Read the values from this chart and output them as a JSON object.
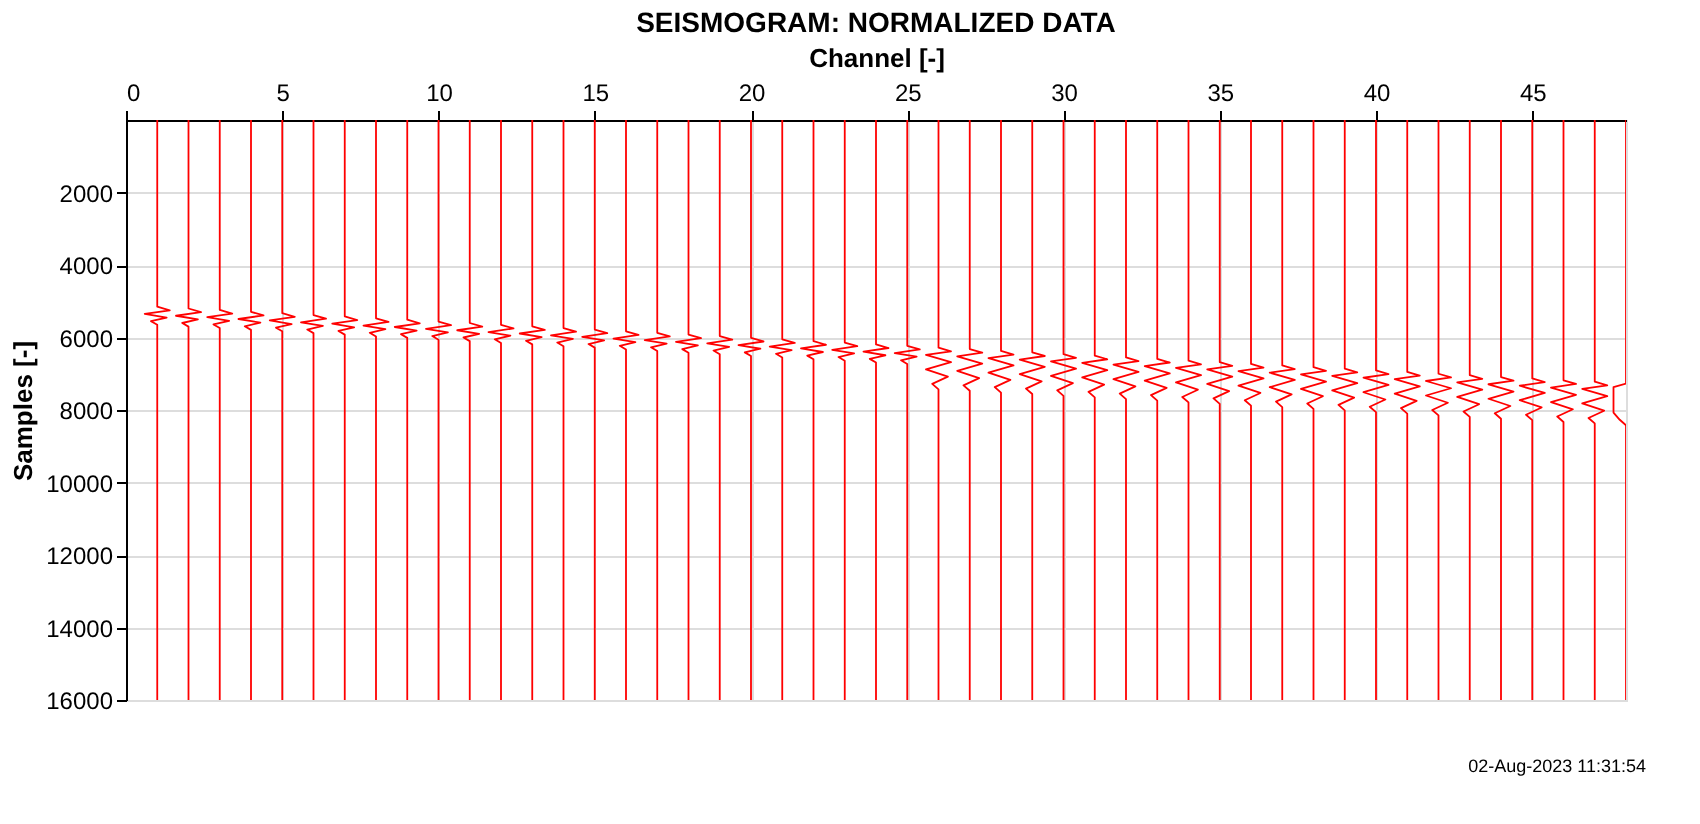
{
  "chart_data": {
    "type": "line",
    "title": "SEISMOGRAM: NORMALIZED DATA",
    "xlabel": "Channel [-]",
    "ylabel": "Samples [-]",
    "xlim": [
      0,
      48
    ],
    "xticks": [
      0,
      5,
      10,
      15,
      20,
      25,
      30,
      35,
      40,
      45
    ],
    "ylim": [
      16000,
      0
    ],
    "yticks": [
      2000,
      4000,
      6000,
      8000,
      10000,
      12000,
      14000,
      16000
    ],
    "grid": true,
    "legend": false,
    "line_style": "solid",
    "annotations": [
      "02-Aug-2023 11:31:54"
    ],
    "series": [
      {
        "x": [
          1,
          1,
          1.4,
          0.6,
          1.3,
          0.8,
          1,
          1
        ],
        "values": [
          0,
          5150,
          5250,
          5350,
          5450,
          5550,
          5650,
          16000
        ],
        "color": "#ff0000"
      },
      {
        "x": [
          2,
          2,
          2.4,
          1.6,
          2.3,
          1.8,
          2,
          2
        ],
        "values": [
          0,
          5200,
          5300,
          5400,
          5500,
          5600,
          5700,
          16000
        ],
        "color": "#ff0000"
      },
      {
        "x": [
          3,
          3,
          3.4,
          2.6,
          3.3,
          2.8,
          3,
          3
        ],
        "values": [
          0,
          5240,
          5340,
          5440,
          5540,
          5640,
          5740,
          16000
        ],
        "color": "#ff0000"
      },
      {
        "x": [
          4,
          4,
          4.4,
          3.6,
          4.3,
          3.8,
          4,
          4
        ],
        "values": [
          0,
          5290,
          5390,
          5490,
          5590,
          5690,
          5790,
          16000
        ],
        "color": "#ff0000"
      },
      {
        "x": [
          5,
          5,
          5.4,
          4.6,
          5.3,
          4.8,
          5,
          5
        ],
        "values": [
          0,
          5330,
          5430,
          5530,
          5630,
          5730,
          5830,
          16000
        ],
        "color": "#ff0000"
      },
      {
        "x": [
          6,
          6,
          6.4,
          5.6,
          6.3,
          5.8,
          6,
          6
        ],
        "values": [
          0,
          5380,
          5480,
          5580,
          5680,
          5780,
          5880,
          16000
        ],
        "color": "#ff0000"
      },
      {
        "x": [
          7,
          7,
          7.4,
          6.6,
          7.3,
          6.8,
          7,
          7
        ],
        "values": [
          0,
          5420,
          5520,
          5620,
          5720,
          5820,
          5920,
          16000
        ],
        "color": "#ff0000"
      },
      {
        "x": [
          8,
          8,
          8.4,
          7.6,
          8.3,
          7.8,
          8,
          8
        ],
        "values": [
          0,
          5470,
          5570,
          5670,
          5770,
          5870,
          5970,
          16000
        ],
        "color": "#ff0000"
      },
      {
        "x": [
          9,
          9,
          9.4,
          8.6,
          9.3,
          8.8,
          9,
          9
        ],
        "values": [
          0,
          5510,
          5610,
          5710,
          5810,
          5910,
          6010,
          16000
        ],
        "color": "#ff0000"
      },
      {
        "x": [
          10,
          10,
          10.4,
          9.6,
          10.3,
          9.8,
          10,
          10
        ],
        "values": [
          0,
          5560,
          5660,
          5760,
          5860,
          5960,
          6060,
          16000
        ],
        "color": "#ff0000"
      },
      {
        "x": [
          11,
          11,
          11.4,
          10.6,
          11.3,
          10.8,
          11,
          11
        ],
        "values": [
          0,
          5600,
          5700,
          5800,
          5900,
          6000,
          6100,
          16000
        ],
        "color": "#ff0000"
      },
      {
        "x": [
          12,
          12,
          12.4,
          11.6,
          12.3,
          11.8,
          12,
          12
        ],
        "values": [
          0,
          5650,
          5750,
          5850,
          5950,
          6050,
          6150,
          16000
        ],
        "color": "#ff0000"
      },
      {
        "x": [
          13,
          13,
          13.4,
          12.6,
          13.3,
          12.8,
          13,
          13
        ],
        "values": [
          0,
          5690,
          5790,
          5890,
          5990,
          6090,
          6190,
          16000
        ],
        "color": "#ff0000"
      },
      {
        "x": [
          14,
          14,
          14.4,
          13.6,
          14.3,
          13.8,
          14,
          14
        ],
        "values": [
          0,
          5740,
          5840,
          5940,
          6040,
          6140,
          6240,
          16000
        ],
        "color": "#ff0000"
      },
      {
        "x": [
          15,
          15,
          15.4,
          14.6,
          15.3,
          14.8,
          15,
          15
        ],
        "values": [
          0,
          5780,
          5880,
          5980,
          6080,
          6180,
          6280,
          16000
        ],
        "color": "#ff0000"
      },
      {
        "x": [
          16,
          16,
          16.4,
          15.6,
          16.3,
          15.8,
          16,
          16
        ],
        "values": [
          0,
          5830,
          5930,
          6030,
          6130,
          6230,
          6330,
          16000
        ],
        "color": "#ff0000"
      },
      {
        "x": [
          17,
          17,
          17.4,
          16.6,
          17.3,
          16.8,
          17,
          17
        ],
        "values": [
          0,
          5870,
          5970,
          6070,
          6170,
          6270,
          6370,
          16000
        ],
        "color": "#ff0000"
      },
      {
        "x": [
          18,
          18,
          18.4,
          17.6,
          18.3,
          17.8,
          18,
          18
        ],
        "values": [
          0,
          5920,
          6020,
          6120,
          6220,
          6320,
          6420,
          16000
        ],
        "color": "#ff0000"
      },
      {
        "x": [
          19,
          19,
          19.4,
          18.6,
          19.3,
          18.8,
          19,
          19
        ],
        "values": [
          0,
          5960,
          6060,
          6160,
          6260,
          6360,
          6460,
          16000
        ],
        "color": "#ff0000"
      },
      {
        "x": [
          20,
          20,
          20.4,
          19.6,
          20.3,
          19.8,
          20,
          20
        ],
        "values": [
          0,
          6010,
          6110,
          6210,
          6310,
          6410,
          6510,
          16000
        ],
        "color": "#ff0000"
      },
      {
        "x": [
          21,
          21,
          21.4,
          20.6,
          21.3,
          20.8,
          21,
          21
        ],
        "values": [
          0,
          6050,
          6150,
          6250,
          6350,
          6450,
          6550,
          16000
        ],
        "color": "#ff0000"
      },
      {
        "x": [
          22,
          22,
          22.4,
          21.6,
          22.3,
          21.8,
          22,
          22
        ],
        "values": [
          0,
          6100,
          6200,
          6300,
          6400,
          6500,
          6600,
          16000
        ],
        "color": "#ff0000"
      },
      {
        "x": [
          23,
          23,
          23.4,
          22.6,
          23.3,
          22.8,
          23,
          23
        ],
        "values": [
          0,
          6140,
          6240,
          6340,
          6440,
          6540,
          6640,
          16000
        ],
        "color": "#ff0000"
      },
      {
        "x": [
          24,
          24,
          24.4,
          23.6,
          24.3,
          23.8,
          24,
          24
        ],
        "values": [
          0,
          6190,
          6290,
          6390,
          6490,
          6590,
          6690,
          16000
        ],
        "color": "#ff0000"
      },
      {
        "x": [
          25,
          25,
          25.4,
          24.6,
          25.3,
          24.8,
          25,
          25
        ],
        "values": [
          0,
          6230,
          6330,
          6430,
          6530,
          6630,
          6730,
          16000
        ],
        "color": "#ff0000"
      },
      {
        "x": [
          26,
          26,
          26.4,
          25.6,
          26.4,
          25.6,
          26.3,
          25.8,
          26,
          26
        ],
        "values": [
          0,
          6280,
          6380,
          6480,
          6680,
          6880,
          7080,
          7280,
          7430,
          16000
        ],
        "color": "#ff0000"
      },
      {
        "x": [
          27,
          27,
          27.4,
          26.6,
          27.4,
          26.6,
          27.3,
          26.8,
          27,
          27
        ],
        "values": [
          0,
          6320,
          6420,
          6520,
          6720,
          6920,
          7120,
          7320,
          7470,
          16000
        ],
        "color": "#ff0000"
      },
      {
        "x": [
          28,
          28,
          28.4,
          27.6,
          28.4,
          27.6,
          28.3,
          27.8,
          28,
          28
        ],
        "values": [
          0,
          6370,
          6470,
          6570,
          6770,
          6970,
          7170,
          7370,
          7520,
          16000
        ],
        "color": "#ff0000"
      },
      {
        "x": [
          29,
          29,
          29.4,
          28.6,
          29.4,
          28.6,
          29.3,
          28.8,
          29,
          29
        ],
        "values": [
          0,
          6410,
          6510,
          6610,
          6810,
          7010,
          7210,
          7410,
          7560,
          16000
        ],
        "color": "#ff0000"
      },
      {
        "x": [
          30,
          30,
          30.4,
          29.6,
          30.4,
          29.6,
          30.3,
          29.8,
          30,
          30
        ],
        "values": [
          0,
          6460,
          6560,
          6660,
          6860,
          7060,
          7260,
          7460,
          7610,
          16000
        ],
        "color": "#ff0000"
      },
      {
        "x": [
          31,
          31,
          31.4,
          30.6,
          31.4,
          30.6,
          31.3,
          30.8,
          31,
          31
        ],
        "values": [
          0,
          6500,
          6600,
          6700,
          6900,
          7100,
          7300,
          7500,
          7650,
          16000
        ],
        "color": "#ff0000"
      },
      {
        "x": [
          32,
          32,
          32.4,
          31.6,
          32.4,
          31.6,
          32.3,
          31.8,
          32,
          32
        ],
        "values": [
          0,
          6550,
          6650,
          6750,
          6950,
          7150,
          7350,
          7550,
          7700,
          16000
        ],
        "color": "#ff0000"
      },
      {
        "x": [
          33,
          33,
          33.4,
          32.6,
          33.4,
          32.6,
          33.3,
          32.8,
          33,
          33
        ],
        "values": [
          0,
          6590,
          6690,
          6790,
          6990,
          7190,
          7390,
          7590,
          7740,
          16000
        ],
        "color": "#ff0000"
      },
      {
        "x": [
          34,
          34,
          34.4,
          33.6,
          34.4,
          33.6,
          34.3,
          33.8,
          34,
          34
        ],
        "values": [
          0,
          6640,
          6740,
          6840,
          7040,
          7240,
          7440,
          7640,
          7790,
          16000
        ],
        "color": "#ff0000"
      },
      {
        "x": [
          35,
          35,
          35.4,
          34.6,
          35.4,
          34.6,
          35.3,
          34.8,
          35,
          35
        ],
        "values": [
          0,
          6680,
          6780,
          6880,
          7080,
          7280,
          7480,
          7680,
          7830,
          16000
        ],
        "color": "#ff0000"
      },
      {
        "x": [
          36,
          36,
          36.4,
          35.6,
          36.4,
          35.6,
          36.3,
          35.8,
          36,
          36
        ],
        "values": [
          0,
          6730,
          6830,
          6930,
          7130,
          7330,
          7530,
          7730,
          7880,
          16000
        ],
        "color": "#ff0000"
      },
      {
        "x": [
          37,
          37,
          37.4,
          36.6,
          37.4,
          36.6,
          37.3,
          36.8,
          37,
          37
        ],
        "values": [
          0,
          6770,
          6870,
          6970,
          7170,
          7370,
          7570,
          7770,
          7920,
          16000
        ],
        "color": "#ff0000"
      },
      {
        "x": [
          38,
          38,
          38.4,
          37.6,
          38.4,
          37.6,
          38.3,
          37.8,
          38,
          38
        ],
        "values": [
          0,
          6820,
          6920,
          7020,
          7220,
          7420,
          7620,
          7820,
          7970,
          16000
        ],
        "color": "#ff0000"
      },
      {
        "x": [
          39,
          39,
          39.4,
          38.6,
          39.4,
          38.6,
          39.3,
          38.8,
          39,
          39
        ],
        "values": [
          0,
          6860,
          6960,
          7060,
          7260,
          7460,
          7660,
          7860,
          8010,
          16000
        ],
        "color": "#ff0000"
      },
      {
        "x": [
          40,
          40,
          40.4,
          39.6,
          40.4,
          39.6,
          40.3,
          39.8,
          40,
          40
        ],
        "values": [
          0,
          6910,
          7010,
          7110,
          7310,
          7510,
          7710,
          7910,
          8060,
          16000
        ],
        "color": "#ff0000"
      },
      {
        "x": [
          41,
          41,
          41.4,
          40.6,
          41.4,
          40.6,
          41.3,
          40.8,
          41,
          41
        ],
        "values": [
          0,
          6950,
          7050,
          7150,
          7350,
          7550,
          7750,
          7950,
          8100,
          16000
        ],
        "color": "#ff0000"
      },
      {
        "x": [
          42,
          42,
          42.4,
          41.6,
          42.4,
          41.6,
          42.3,
          41.8,
          42,
          42
        ],
        "values": [
          0,
          7000,
          7100,
          7200,
          7400,
          7600,
          7800,
          8000,
          8150,
          16000
        ],
        "color": "#ff0000"
      },
      {
        "x": [
          43,
          43,
          43.4,
          42.6,
          43.4,
          42.6,
          43.3,
          42.8,
          43,
          43
        ],
        "values": [
          0,
          7040,
          7140,
          7240,
          7440,
          7640,
          7840,
          8040,
          8190,
          16000
        ],
        "color": "#ff0000"
      },
      {
        "x": [
          44,
          44,
          44.4,
          43.6,
          44.4,
          43.6,
          44.3,
          43.8,
          44,
          44
        ],
        "values": [
          0,
          7090,
          7190,
          7290,
          7490,
          7690,
          7890,
          8090,
          8240,
          16000
        ],
        "color": "#ff0000"
      },
      {
        "x": [
          45,
          45,
          45.4,
          44.6,
          45.4,
          44.6,
          45.3,
          44.8,
          45,
          45
        ],
        "values": [
          0,
          7130,
          7230,
          7330,
          7530,
          7730,
          7930,
          8130,
          8280,
          16000
        ],
        "color": "#ff0000"
      },
      {
        "x": [
          46,
          46,
          46.4,
          45.6,
          46.4,
          45.6,
          46.3,
          45.8,
          46,
          46
        ],
        "values": [
          0,
          7180,
          7280,
          7380,
          7580,
          7780,
          7980,
          8180,
          8330,
          16000
        ],
        "color": "#ff0000"
      },
      {
        "x": [
          47,
          47,
          47.4,
          46.6,
          47.4,
          46.6,
          47.3,
          46.8,
          47,
          47
        ],
        "values": [
          0,
          7220,
          7320,
          7420,
          7620,
          7820,
          8020,
          8220,
          8370,
          16000
        ],
        "color": "#ff0000"
      },
      {
        "x": [
          48,
          48,
          47.6,
          47.6,
          47.6,
          47.6,
          47.6,
          47.8,
          48,
          48
        ],
        "values": [
          0,
          7270,
          7370,
          7470,
          7670,
          7870,
          8070,
          8270,
          8420,
          16000
        ],
        "color": "#ff0000"
      }
    ]
  }
}
